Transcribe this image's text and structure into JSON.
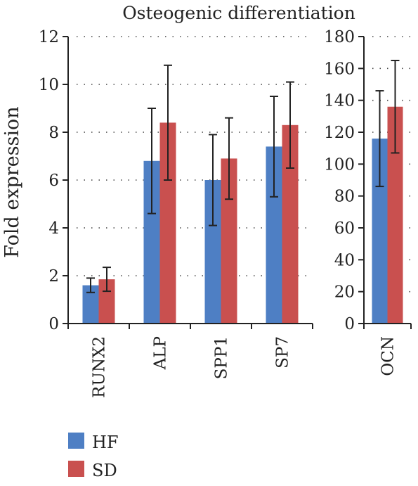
{
  "chart_data": {
    "type": "bar",
    "title": "Osteogenic differentiation",
    "ylabel": "Fold expression",
    "colors": {
      "HF": "#4e7fc4",
      "SD": "#c9504f"
    },
    "legend": {
      "placement": "bottom-left",
      "entries": [
        "HF",
        "SD"
      ]
    },
    "grid": true,
    "panels": [
      {
        "categories": [
          "RUNX2",
          "ALP",
          "SPP1",
          "SP7"
        ],
        "ylim": [
          0,
          12
        ],
        "yticks": [
          "0",
          "2",
          "4",
          "6",
          "8",
          "10",
          "12"
        ],
        "series": [
          {
            "name": "HF",
            "values": [
              1.6,
              6.8,
              6.0,
              7.4
            ],
            "errors": [
              0.3,
              2.2,
              1.9,
              2.1
            ]
          },
          {
            "name": "SD",
            "values": [
              1.85,
              8.4,
              6.9,
              8.3
            ],
            "errors": [
              0.5,
              2.4,
              1.7,
              1.8
            ]
          }
        ]
      },
      {
        "categories": [
          "OCN"
        ],
        "ylim": [
          0,
          180
        ],
        "yticks": [
          "0",
          "20",
          "40",
          "60",
          "80",
          "100",
          "120",
          "140",
          "160",
          "180"
        ],
        "series": [
          {
            "name": "HF",
            "values": [
              116
            ],
            "errors": [
              30
            ]
          },
          {
            "name": "SD",
            "values": [
              136
            ],
            "errors": [
              29
            ]
          }
        ]
      }
    ]
  }
}
